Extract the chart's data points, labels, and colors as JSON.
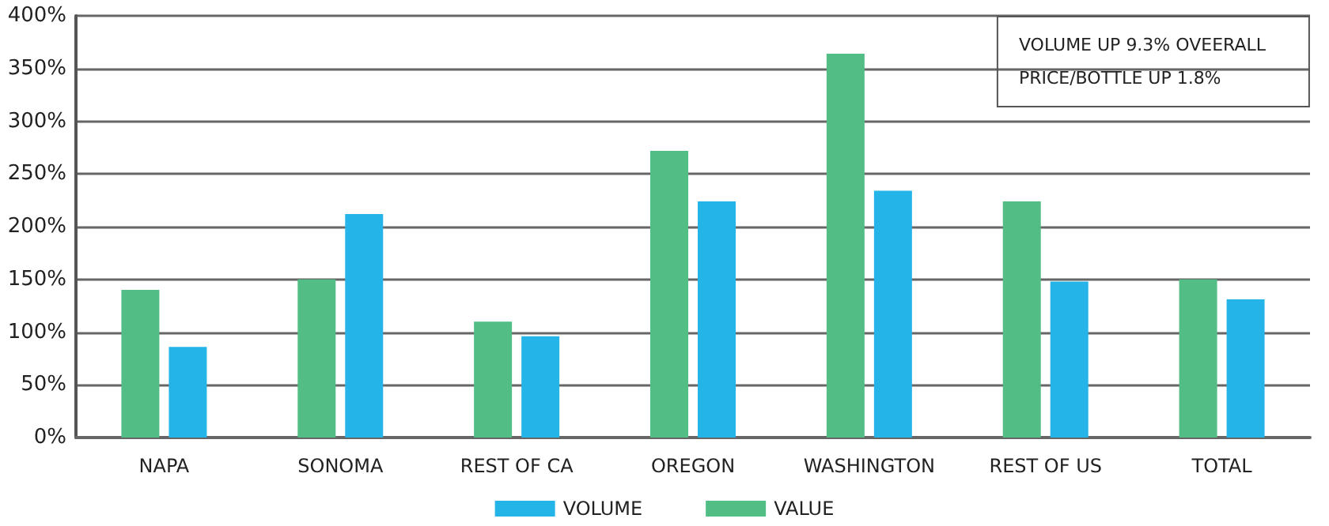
{
  "chart_data": {
    "type": "bar",
    "categories": [
      "NAPA",
      "SONOMA",
      "REST OF CA",
      "OREGON",
      "WASHINGTON",
      "REST OF US",
      "TOTAL"
    ],
    "series": [
      {
        "name": "VALUE",
        "color": "#52be85",
        "values": [
          140,
          150,
          110,
          272,
          364,
          224,
          150
        ]
      },
      {
        "name": "VOLUME",
        "color": "#25b4e8",
        "values": [
          86,
          212,
          96,
          224,
          234,
          148,
          131
        ]
      }
    ],
    "ylim": [
      0,
      400
    ],
    "yticks": [
      {
        "value": 0,
        "label": "0%"
      },
      {
        "value": 50,
        "label": "50%"
      },
      {
        "value": 100,
        "label": "100%"
      },
      {
        "value": 150,
        "label": "150%"
      },
      {
        "value": 200,
        "label": "200%"
      },
      {
        "value": 250,
        "label": "250%"
      },
      {
        "value": 300,
        "label": "300%"
      },
      {
        "value": 350,
        "label": "350%"
      },
      {
        "value": 400,
        "label": "400%"
      }
    ],
    "annotations": [
      "VOLUME UP 9.3% OVEERALL",
      "PRICE/BOTTLE UP 1.8%"
    ],
    "grid": "y",
    "legend": "bottom"
  }
}
